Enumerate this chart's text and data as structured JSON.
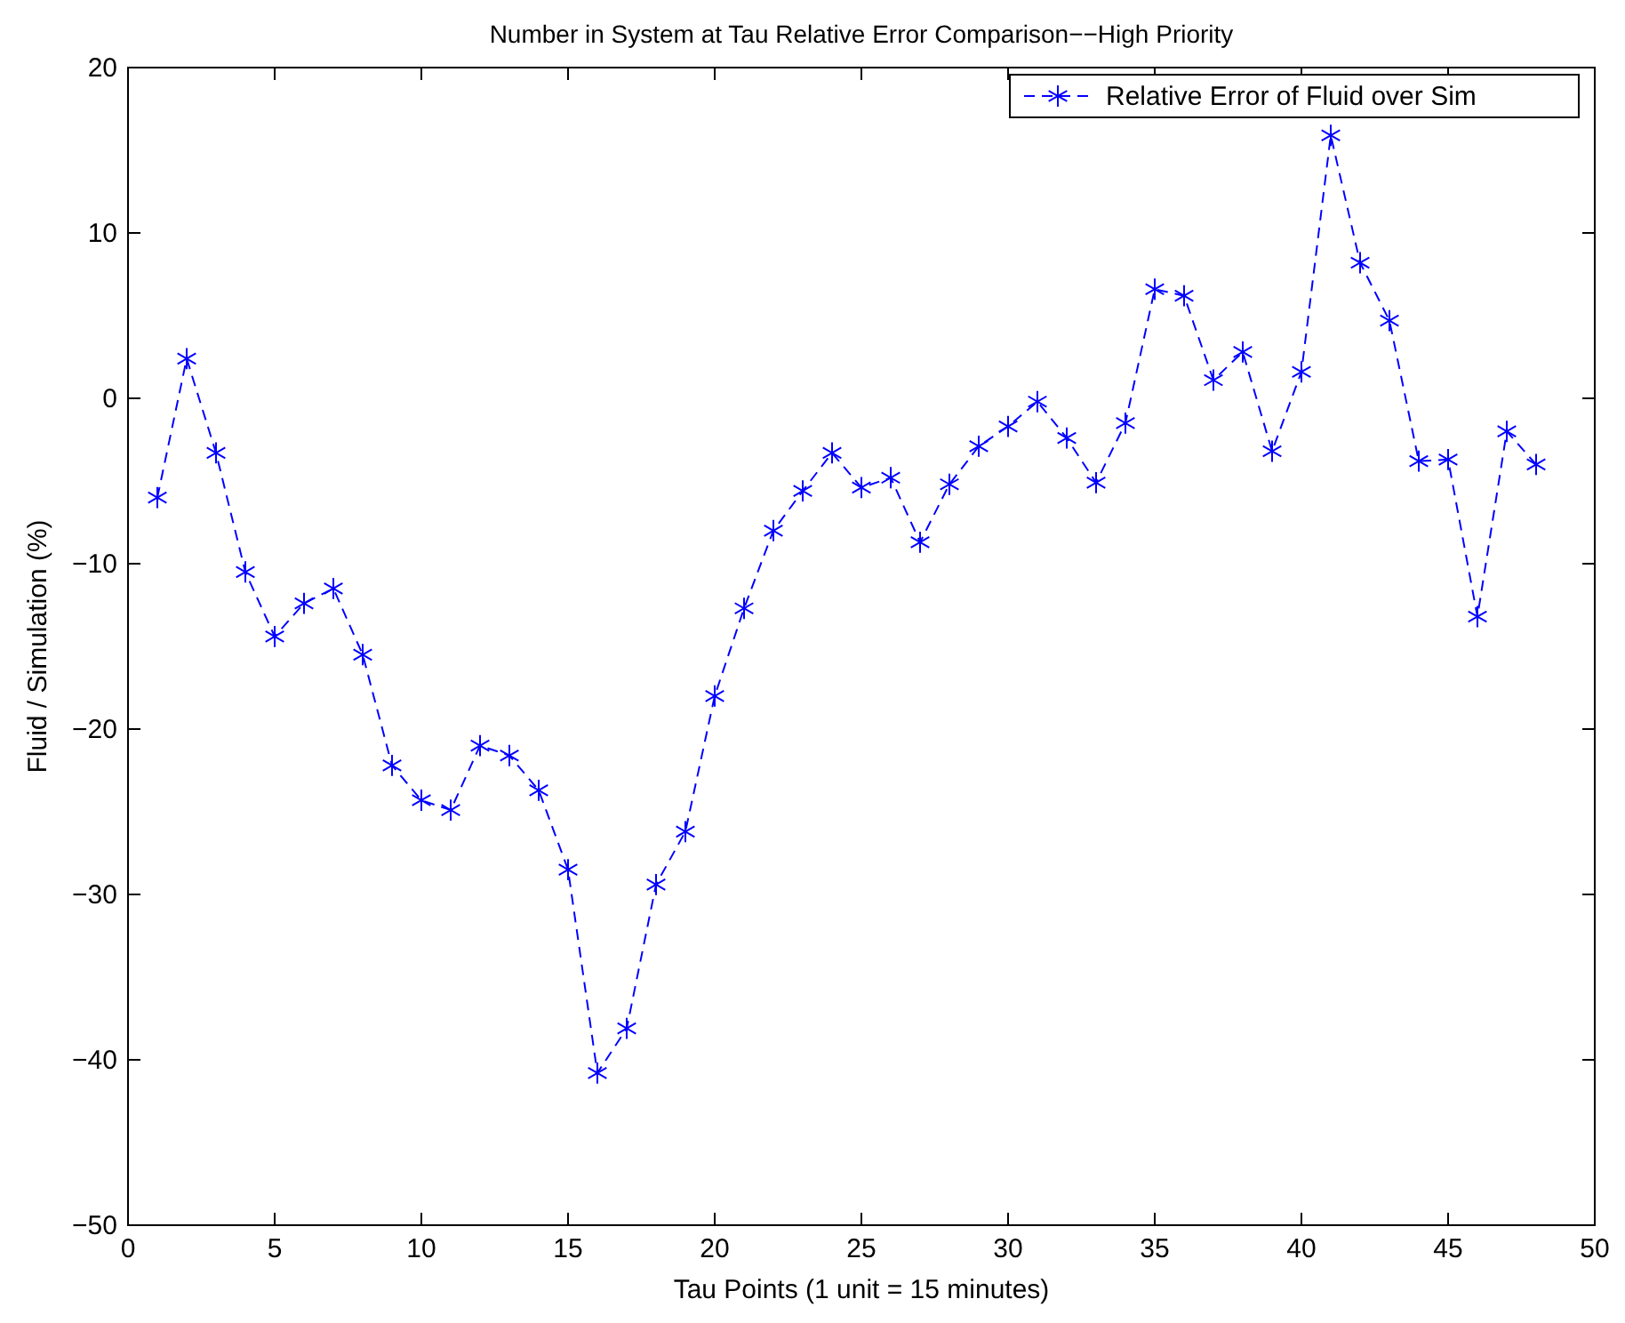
{
  "chart_data": {
    "type": "line",
    "title": "Number in System at Tau Relative Error Comparison−−High Priority",
    "xlabel": "Tau Points (1 unit = 15 minutes)",
    "ylabel": "Fluid / Simulation (%)",
    "x": [
      1,
      2,
      3,
      4,
      5,
      6,
      7,
      8,
      9,
      10,
      11,
      12,
      13,
      14,
      15,
      16,
      17,
      18,
      19,
      20,
      21,
      22,
      23,
      24,
      25,
      26,
      27,
      28,
      29,
      30,
      31,
      32,
      33,
      34,
      35,
      36,
      37,
      38,
      39,
      40,
      41,
      42,
      43,
      44,
      45,
      46,
      47,
      48
    ],
    "series": [
      {
        "name": "Relative Error of Fluid over Sim",
        "color": "#0000ff",
        "values": [
          -6.0,
          2.4,
          -3.3,
          -10.5,
          -14.4,
          -12.4,
          -11.5,
          -15.5,
          -22.2,
          -24.3,
          -24.9,
          -21.0,
          -21.6,
          -23.7,
          -28.5,
          -40.8,
          -38.1,
          -29.4,
          -26.2,
          -18.0,
          -12.7,
          -8.0,
          -5.6,
          -3.3,
          -5.4,
          -4.8,
          -8.7,
          -5.2,
          -2.9,
          -1.7,
          -0.2,
          -2.4,
          -5.1,
          -1.5,
          6.6,
          6.2,
          1.1,
          2.8,
          -3.2,
          1.6,
          15.9,
          8.2,
          4.7,
          -3.8,
          -3.7,
          -13.2,
          -2.0,
          -4.0
        ]
      }
    ],
    "xlim": [
      0,
      50
    ],
    "xticks": [
      0,
      5,
      10,
      15,
      20,
      25,
      30,
      35,
      40,
      45,
      50
    ],
    "ylim": [
      -50,
      20
    ],
    "yticks": [
      -50,
      -40,
      -30,
      -20,
      -10,
      0,
      10,
      20
    ],
    "grid": false,
    "legend": "top right",
    "marker": "cross",
    "line_style": "dashed"
  }
}
